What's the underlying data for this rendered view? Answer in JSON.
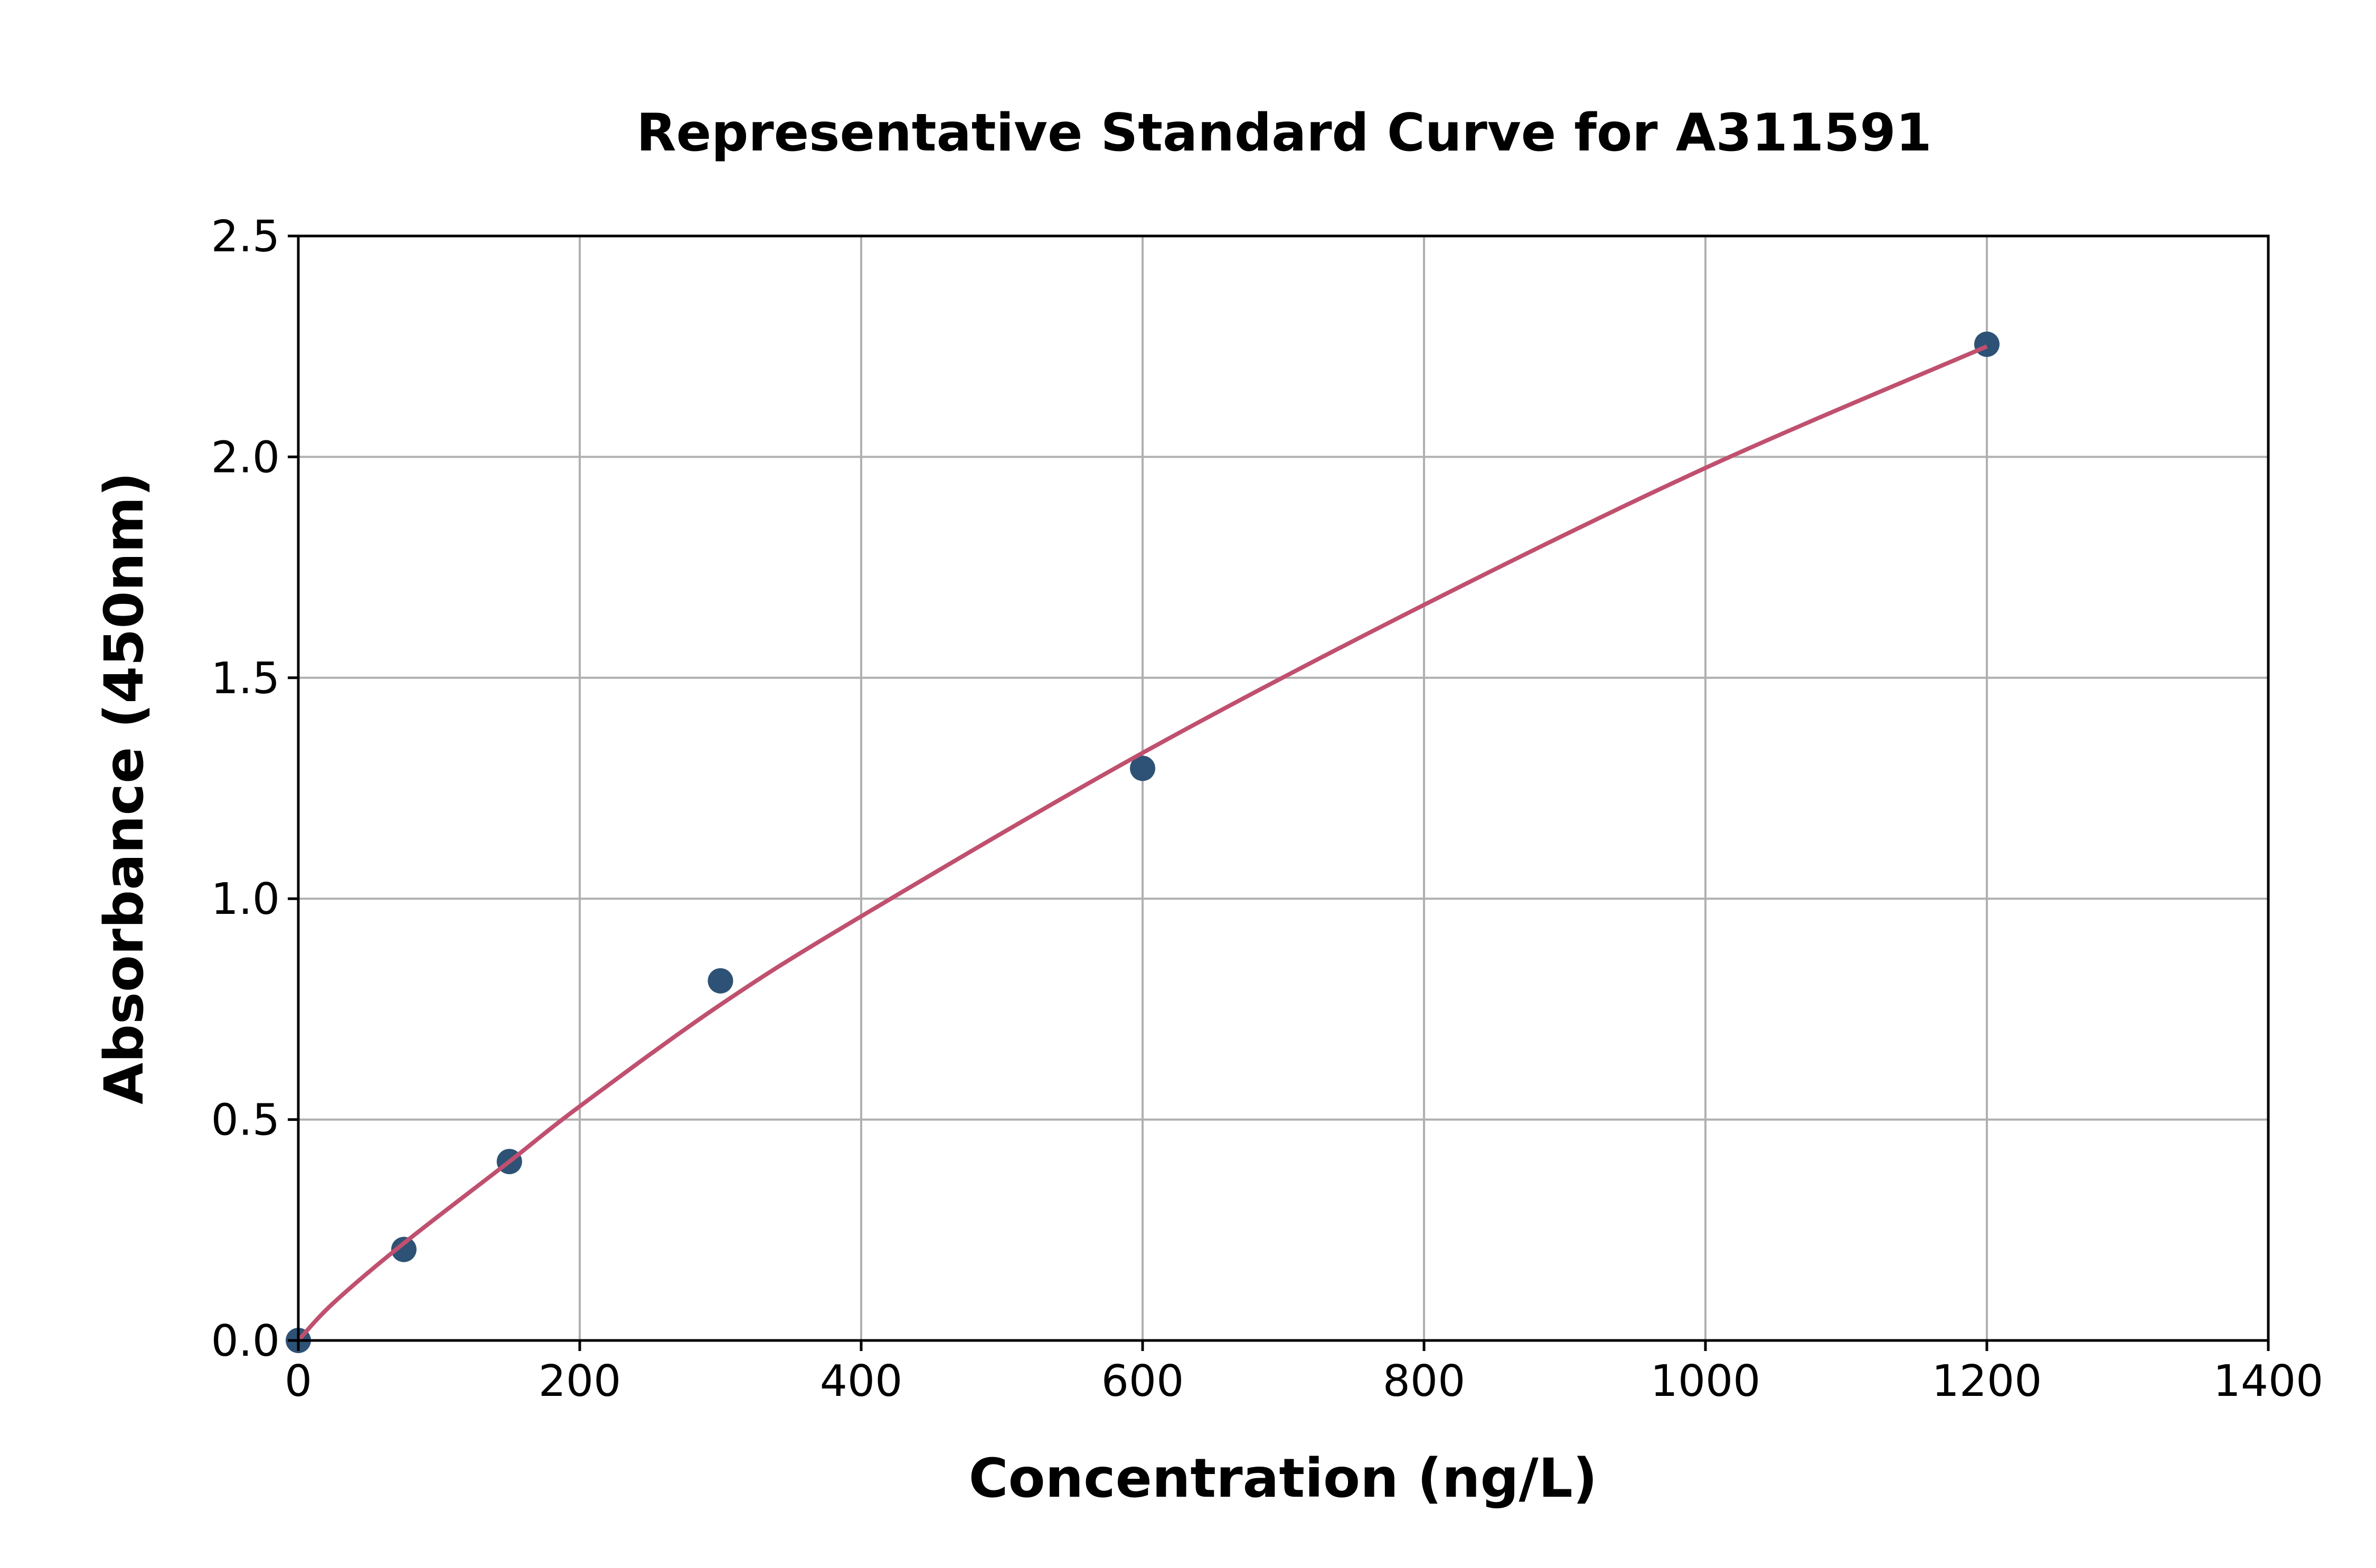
{
  "chart_data": {
    "type": "scatter",
    "title": "Representative Standard Curve for A311591",
    "xlabel": "Concentration (ng/L)",
    "ylabel": "Absorbance (450nm)",
    "xlim": [
      0,
      1400
    ],
    "ylim": [
      0,
      2.5
    ],
    "xticks": [
      "0",
      "200",
      "400",
      "600",
      "800",
      "1000",
      "1200",
      "1400"
    ],
    "yticks": [
      "0.0",
      "0.5",
      "1.0",
      "1.5",
      "2.0",
      "2.5"
    ],
    "grid": true,
    "points": {
      "x": [
        0,
        75,
        150,
        300,
        600,
        1200
      ],
      "y": [
        0.0,
        0.206,
        0.405,
        0.814,
        1.295,
        2.255
      ],
      "color": "#2e5275"
    },
    "fit_curve": {
      "x": [
        0,
        25,
        75,
        150,
        200,
        300,
        400,
        600,
        800,
        1000,
        1200
      ],
      "y": [
        0.0,
        0.085,
        0.22,
        0.405,
        0.53,
        0.76,
        0.96,
        1.33,
        1.665,
        1.975,
        2.25
      ],
      "color": "#c0506f"
    }
  }
}
